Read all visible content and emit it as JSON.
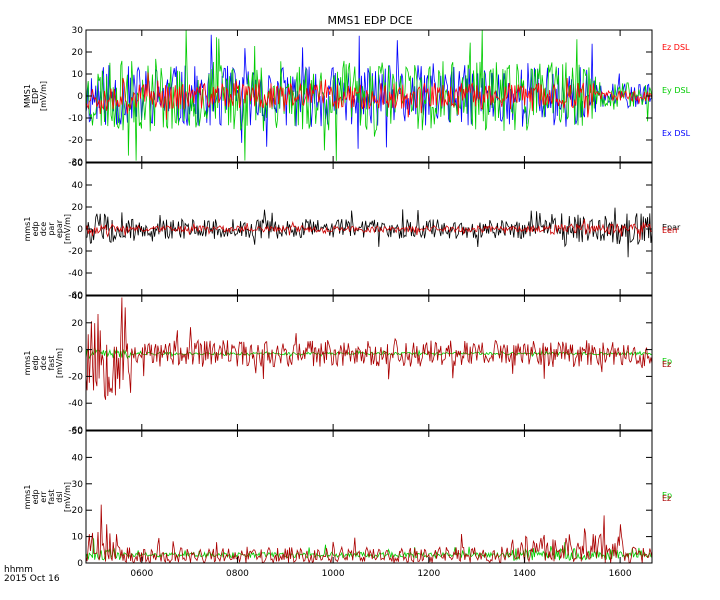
{
  "title": "MMS1 EDP DCE",
  "footer": {
    "line1": "hhmm",
    "line2": "2015 Oct 16"
  },
  "chart_data": [
    {
      "type": "line",
      "panel": 1,
      "ylabel": [
        "MMS1",
        "EDP",
        "[mV/m]"
      ],
      "ylim": [
        -30,
        30
      ],
      "yticks": [
        30,
        20,
        10,
        0,
        -10,
        -20,
        -30
      ],
      "series": [
        {
          "name": "Ex DSL",
          "color": "#0000ff",
          "amp": 14,
          "seed": 11
        },
        {
          "name": "Ey DSL",
          "color": "#00cc00",
          "amp": 16,
          "seed": 23
        },
        {
          "name": "Ez DSL",
          "color": "#ff0000",
          "amp": 6,
          "seed": 37
        }
      ]
    },
    {
      "type": "line",
      "panel": 2,
      "ylabel": [
        "mms1",
        "edp",
        "dce",
        "par",
        "epar",
        "[mV/m]"
      ],
      "ylim": [
        -60,
        60
      ],
      "yticks": [
        60,
        40,
        20,
        0,
        -20,
        -40,
        -60
      ],
      "series": [
        {
          "name": "Epar",
          "color": "#000000",
          "amp": 9,
          "seed": 5
        },
        {
          "name": "Eerr",
          "color": "#cc0000",
          "amp": 3,
          "seed": 19
        }
      ]
    },
    {
      "type": "line",
      "panel": 3,
      "ylabel": [
        "mms1",
        "edp",
        "dce",
        "fast",
        "[mV/m]"
      ],
      "ylim": [
        -60,
        40
      ],
      "yticks": [
        40,
        20,
        0,
        -20,
        -40,
        -60
      ],
      "series": [
        {
          "name": "Ep",
          "color": "#00cc00",
          "amp": 1,
          "seed": 41
        },
        {
          "name": "Ez",
          "color": "#aa0000",
          "amp": 10,
          "seed": 53
        }
      ]
    },
    {
      "type": "line",
      "panel": 4,
      "ylabel": [
        "mms1",
        "edp",
        "err",
        "fast",
        "dsl",
        "[mV/m]"
      ],
      "ylim": [
        0,
        50
      ],
      "yticks": [
        50,
        40,
        30,
        20,
        10,
        0
      ],
      "series": [
        {
          "name": "Ep",
          "color": "#00cc00",
          "amp": 1,
          "seed": 61
        },
        {
          "name": "Ez",
          "color": "#aa0000",
          "amp": 4,
          "seed": 71
        }
      ]
    }
  ],
  "xaxis": {
    "label": "hhmm",
    "range_minutes": [
      290,
      1000
    ],
    "ticks": [
      {
        "label": "0600",
        "minutes": 360
      },
      {
        "label": "0800",
        "minutes": 480
      },
      {
        "label": "1000",
        "minutes": 600
      },
      {
        "label": "1200",
        "minutes": 720
      },
      {
        "label": "1400",
        "minutes": 840
      },
      {
        "label": "1600",
        "minutes": 960
      }
    ]
  }
}
